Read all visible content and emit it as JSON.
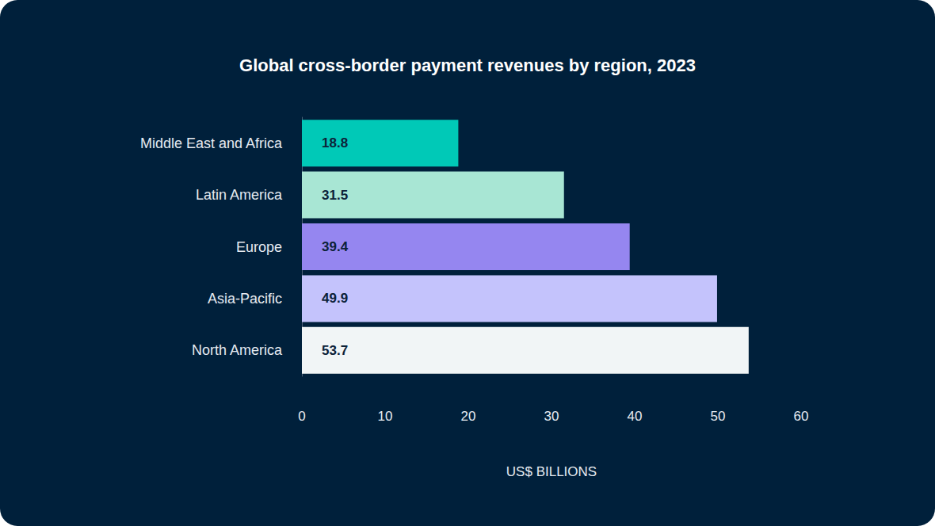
{
  "chart_data": {
    "type": "bar",
    "title": "Global cross-border payment revenues by region, 2023",
    "orientation": "horizontal",
    "categories": [
      "Middle East and Africa",
      "Latin America",
      "Europe",
      "Asia-Pacific",
      "North America"
    ],
    "values": [
      18.8,
      31.5,
      39.4,
      49.9,
      53.7
    ],
    "colors": [
      "#00c9b7",
      "#a8e6d4",
      "#9586f0",
      "#c4c3fc",
      "#f1f5f6"
    ],
    "x_label": "US$ BILLIONS",
    "xlim": [
      0,
      60
    ],
    "xticks": [
      0,
      10,
      20,
      30,
      40,
      50,
      60
    ],
    "grid": false,
    "data_labels": true
  }
}
